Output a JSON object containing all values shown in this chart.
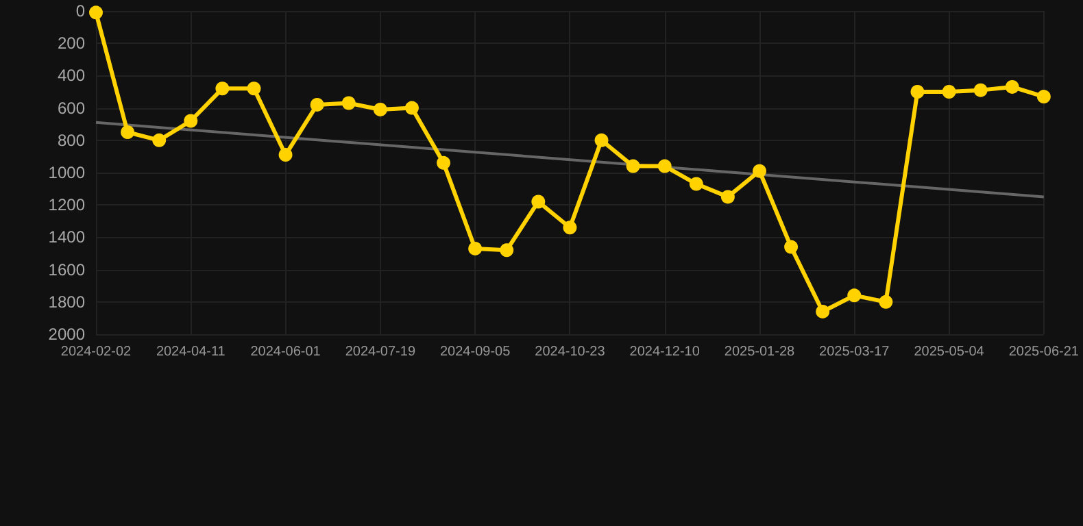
{
  "chart_data": {
    "type": "line",
    "categories": [
      "2024-02-02",
      null,
      null,
      "2024-04-11",
      null,
      null,
      "2024-06-01",
      null,
      null,
      "2024-07-19",
      null,
      null,
      "2024-09-05",
      null,
      null,
      "2024-10-23",
      null,
      null,
      "2024-12-10",
      null,
      null,
      "2025-01-28",
      null,
      null,
      "2025-03-17",
      null,
      null,
      "2025-05-04",
      null,
      null,
      "2025-06-21"
    ],
    "series": [
      {
        "color": "#ffd200",
        "marker": "circle",
        "values": [
          10,
          750,
          800,
          680,
          480,
          480,
          890,
          580,
          570,
          610,
          600,
          940,
          1470,
          1480,
          1180,
          1340,
          800,
          960,
          960,
          1070,
          1150,
          990,
          1460,
          1860,
          1760,
          1800,
          500,
          500,
          490,
          470,
          530
        ]
      },
      {
        "type": "line",
        "color": "#666666",
        "marker": "none",
        "values": [
          690,
          null,
          null,
          null,
          null,
          null,
          null,
          null,
          null,
          null,
          null,
          null,
          null,
          null,
          null,
          null,
          null,
          null,
          null,
          null,
          null,
          null,
          null,
          null,
          null,
          null,
          null,
          null,
          null,
          null,
          1150
        ]
      }
    ],
    "ylim": [
      2000,
      0
    ],
    "yticks": [
      0,
      200,
      400,
      600,
      800,
      1000,
      1200,
      1400,
      1600,
      1800,
      2000
    ],
    "grid": true
  }
}
